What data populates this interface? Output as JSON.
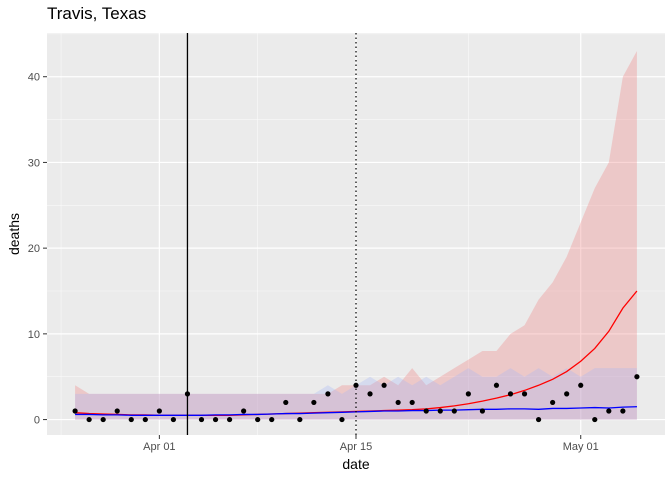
{
  "chart_data": {
    "type": "line",
    "title": "Travis, Texas",
    "xlabel": "date",
    "ylabel": "deaths",
    "x_ticks": [
      {
        "date": "2020-04-01",
        "label": "Apr 01"
      },
      {
        "date": "2020-04-15",
        "label": "Apr 15"
      },
      {
        "date": "2020-05-01",
        "label": "May 01"
      }
    ],
    "y_ticks": [
      0,
      10,
      20,
      30,
      40
    ],
    "xlim": [
      "2020-03-24",
      "2020-05-07"
    ],
    "ylim": [
      -1.8,
      45.1
    ],
    "grid": true,
    "background": "#ebebeb",
    "solid_vline": "2020-04-03",
    "dotted_vline": "2020-04-15",
    "observed": {
      "color": "#000000",
      "dates": [
        "2020-03-26",
        "2020-03-27",
        "2020-03-28",
        "2020-03-29",
        "2020-03-30",
        "2020-03-31",
        "2020-04-01",
        "2020-04-02",
        "2020-04-03",
        "2020-04-04",
        "2020-04-05",
        "2020-04-06",
        "2020-04-07",
        "2020-04-08",
        "2020-04-09",
        "2020-04-10",
        "2020-04-11",
        "2020-04-12",
        "2020-04-13",
        "2020-04-14",
        "2020-04-15",
        "2020-04-16",
        "2020-04-17",
        "2020-04-18",
        "2020-04-19",
        "2020-04-20",
        "2020-04-21",
        "2020-04-22",
        "2020-04-23",
        "2020-04-24",
        "2020-04-25",
        "2020-04-26",
        "2020-04-27",
        "2020-04-28",
        "2020-04-29",
        "2020-04-30",
        "2020-05-01",
        "2020-05-02",
        "2020-05-03",
        "2020-05-04",
        "2020-05-05"
      ],
      "values": [
        1,
        0,
        0,
        1,
        0,
        0,
        1,
        0,
        3,
        0,
        0,
        0,
        1,
        0,
        0,
        2,
        0,
        2,
        3,
        0,
        4,
        3,
        4,
        2,
        2,
        1,
        1,
        1,
        3,
        1,
        4,
        3,
        3,
        0,
        2,
        3,
        4,
        0,
        1,
        1,
        5
      ]
    },
    "series": [
      {
        "color": "#ff0000",
        "band_color": "#f08080",
        "dates": [
          "2020-03-26",
          "2020-03-27",
          "2020-03-28",
          "2020-03-29",
          "2020-03-30",
          "2020-03-31",
          "2020-04-01",
          "2020-04-02",
          "2020-04-03",
          "2020-04-04",
          "2020-04-05",
          "2020-04-06",
          "2020-04-07",
          "2020-04-08",
          "2020-04-09",
          "2020-04-10",
          "2020-04-11",
          "2020-04-12",
          "2020-04-13",
          "2020-04-14",
          "2020-04-15",
          "2020-04-16",
          "2020-04-17",
          "2020-04-18",
          "2020-04-19",
          "2020-04-20",
          "2020-04-21",
          "2020-04-22",
          "2020-04-23",
          "2020-04-24",
          "2020-04-25",
          "2020-04-26",
          "2020-04-27",
          "2020-04-28",
          "2020-04-29",
          "2020-04-30",
          "2020-05-01",
          "2020-05-02",
          "2020-05-03",
          "2020-05-04",
          "2020-05-05"
        ],
        "values": [
          0.8,
          0.7,
          0.65,
          0.6,
          0.55,
          0.55,
          0.5,
          0.5,
          0.5,
          0.5,
          0.5,
          0.5,
          0.55,
          0.6,
          0.65,
          0.7,
          0.75,
          0.8,
          0.85,
          0.9,
          0.95,
          1.0,
          1.05,
          1.1,
          1.15,
          1.25,
          1.4,
          1.6,
          1.85,
          2.15,
          2.5,
          2.9,
          3.4,
          4.0,
          4.7,
          5.6,
          6.8,
          8.3,
          10.3,
          13.0,
          15.0
        ],
        "lower": [
          0,
          0,
          0,
          0,
          0,
          0,
          0,
          0,
          0,
          0,
          0,
          0,
          0,
          0,
          0,
          0,
          0,
          0,
          0,
          0,
          0,
          0,
          0,
          0,
          0,
          0,
          0,
          0,
          0,
          0,
          0,
          0,
          0,
          0,
          0,
          0,
          0,
          0,
          0,
          0,
          0
        ],
        "upper": [
          4,
          3,
          3,
          3,
          3,
          3,
          3,
          3,
          3,
          3,
          3,
          3,
          3,
          3,
          3,
          3,
          3,
          3,
          3,
          4,
          4,
          4,
          5,
          4,
          6,
          4,
          5,
          6,
          7,
          8,
          8,
          10,
          11,
          14,
          16,
          19,
          23,
          27,
          30,
          40,
          43
        ]
      },
      {
        "color": "#0000ff",
        "band_color": "#a9b6f5",
        "dates": [
          "2020-03-26",
          "2020-03-27",
          "2020-03-28",
          "2020-03-29",
          "2020-03-30",
          "2020-03-31",
          "2020-04-01",
          "2020-04-02",
          "2020-04-03",
          "2020-04-04",
          "2020-04-05",
          "2020-04-06",
          "2020-04-07",
          "2020-04-08",
          "2020-04-09",
          "2020-04-10",
          "2020-04-11",
          "2020-04-12",
          "2020-04-13",
          "2020-04-14",
          "2020-04-15",
          "2020-04-16",
          "2020-04-17",
          "2020-04-18",
          "2020-04-19",
          "2020-04-20",
          "2020-04-21",
          "2020-04-22",
          "2020-04-23",
          "2020-04-24",
          "2020-04-25",
          "2020-04-26",
          "2020-04-27",
          "2020-04-28",
          "2020-04-29",
          "2020-04-30",
          "2020-05-01",
          "2020-05-02",
          "2020-05-03",
          "2020-05-04",
          "2020-05-05"
        ],
        "values": [
          0.6,
          0.6,
          0.55,
          0.55,
          0.5,
          0.5,
          0.5,
          0.5,
          0.5,
          0.5,
          0.55,
          0.55,
          0.6,
          0.6,
          0.65,
          0.7,
          0.7,
          0.75,
          0.8,
          0.85,
          0.9,
          0.95,
          1.0,
          1.0,
          1.05,
          1.05,
          1.1,
          1.1,
          1.15,
          1.2,
          1.2,
          1.25,
          1.25,
          1.2,
          1.3,
          1.3,
          1.35,
          1.4,
          1.35,
          1.45,
          1.5
        ],
        "lower": [
          0,
          0,
          0,
          0,
          0,
          0,
          0,
          0,
          0,
          0,
          0,
          0,
          0,
          0,
          0,
          0,
          0,
          0,
          0,
          0,
          0,
          0,
          0,
          0,
          0,
          0,
          0,
          0,
          0,
          0,
          0,
          0,
          0,
          0,
          0,
          0,
          0,
          0,
          0,
          0,
          0
        ],
        "upper": [
          3,
          3,
          3,
          3,
          3,
          3,
          3,
          3,
          3,
          3,
          3,
          3,
          3,
          3,
          3,
          3,
          3,
          3,
          4,
          3,
          4,
          5,
          4,
          5,
          4,
          5,
          4,
          5,
          6,
          5,
          5,
          6,
          5,
          6,
          5,
          6,
          5,
          6,
          6,
          6,
          6
        ]
      }
    ]
  }
}
